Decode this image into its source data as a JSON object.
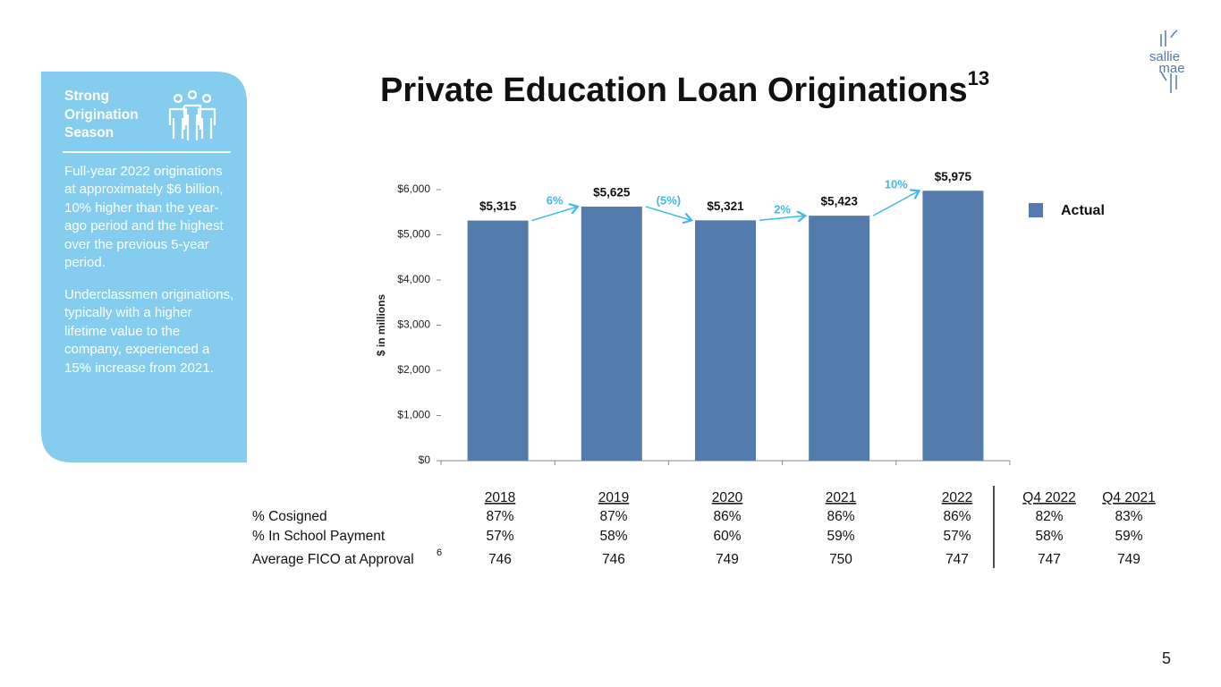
{
  "title": "Private Education Loan Originations",
  "title_superscript": "13",
  "logo": [
    "sallie",
    "mae"
  ],
  "page_number": "5",
  "sidebar": {
    "heading": "Strong Origination Season",
    "paragraphs": [
      "Full-year 2022 originations at approximately $6 billion, 10% higher than the year-ago period and the highest over the previous 5-year period.",
      "Underclassmen originations, typically with a higher lifetime value to the company, experienced a 15% increase from 2021."
    ]
  },
  "chart_data": {
    "type": "bar",
    "categories": [
      null,
      null,
      null,
      null,
      null
    ],
    "series": [
      {
        "name": "Actual",
        "color": "#537bab",
        "values": [
          5315,
          5625,
          5321,
          5423,
          5975
        ],
        "value_labels": [
          "$5,315",
          "$5,625",
          "$5,321",
          "$5,423",
          "$5,975"
        ]
      }
    ],
    "growth_labels": [
      "6%",
      "(5%)",
      "2%",
      "10%"
    ],
    "growth_color": "#3db8e8",
    "ylim": [
      0,
      6000
    ],
    "yticks": [
      {
        "value": 0,
        "label": "$0"
      },
      {
        "value": 1000,
        "label": "$1,000"
      },
      {
        "value": 2000,
        "label": "$2,000"
      },
      {
        "value": 3000,
        "label": "$3,000"
      },
      {
        "value": 4000,
        "label": "$4,000"
      },
      {
        "value": 5000,
        "label": "$5,000"
      },
      {
        "value": 6000,
        "label": "$6,000"
      }
    ],
    "y_label": "$ in millions",
    "legend": "right",
    "grid": false
  },
  "table": {
    "columns": [
      "2018",
      "2019",
      "2020",
      "2021",
      "2022",
      "Q4 2022",
      "Q4 2021"
    ],
    "rows": [
      {
        "label": "% Cosigned",
        "cells": [
          "87%",
          "87%",
          "86%",
          "86%",
          "86%",
          "82%",
          "83%"
        ]
      },
      {
        "label": "% In School Payment",
        "cells": [
          "57%",
          "58%",
          "60%",
          "59%",
          "57%",
          "58%",
          "59%"
        ]
      },
      {
        "label": "Average FICO at Approval",
        "note": "6",
        "cells": [
          "746",
          "746",
          "749",
          "750",
          "747",
          "747",
          "749"
        ]
      }
    ]
  }
}
